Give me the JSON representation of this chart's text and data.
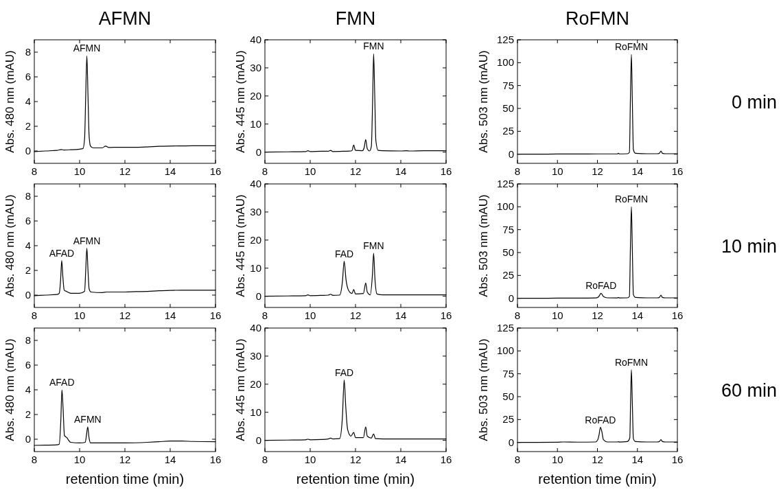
{
  "chart_data": [
    {
      "type": "line",
      "title": "AFMN",
      "ylabel": "Abs. 480 nm (mAU)",
      "xlim": [
        8,
        16
      ],
      "xticks": [
        8,
        10,
        12,
        14,
        16
      ],
      "ylim": [
        -1,
        9
      ],
      "yticks": [
        0,
        2,
        4,
        6,
        8
      ],
      "series": [
        {
          "color": "#000000",
          "x": [
            8,
            8.5,
            9,
            9.2,
            9.3,
            9.6,
            10,
            10.15,
            10.22,
            10.27,
            10.32,
            10.37,
            10.42,
            10.48,
            10.6,
            11,
            11.15,
            11.3,
            11.5,
            12,
            12.5,
            13,
            13.5,
            14,
            14.5,
            15,
            15.5,
            16
          ],
          "values": [
            -0.05,
            0,
            0.05,
            0.12,
            0.08,
            0.1,
            0.15,
            0.2,
            1.0,
            4.5,
            7.7,
            4.5,
            1.2,
            0.4,
            0.25,
            0.25,
            0.4,
            0.28,
            0.3,
            0.3,
            0.3,
            0.33,
            0.38,
            0.4,
            0.41,
            0.42,
            0.42,
            0.42
          ]
        }
      ],
      "annotations": [
        {
          "text": "AFMN",
          "x": 10.32,
          "y": 7.7
        }
      ]
    },
    {
      "type": "line",
      "title": "FMN",
      "ylabel": "Abs. 445 nm (mAU)",
      "xlim": [
        8,
        16
      ],
      "xticks": [
        8,
        10,
        12,
        14,
        16
      ],
      "ylim": [
        -4,
        40
      ],
      "yticks": [
        0,
        10,
        20,
        30,
        40
      ],
      "series": [
        {
          "color": "#000000",
          "x": [
            8,
            9,
            9.8,
            9.9,
            10,
            10.5,
            10.8,
            10.9,
            11,
            11.5,
            11.8,
            11.85,
            11.92,
            12,
            12.3,
            12.38,
            12.45,
            12.52,
            12.62,
            12.7,
            12.76,
            12.8,
            12.85,
            12.9,
            13,
            13.2,
            14,
            14.25,
            14.4,
            15,
            16
          ],
          "values": [
            0,
            0.1,
            0.2,
            0.5,
            0.2,
            0.3,
            0.3,
            0.6,
            0.2,
            0.3,
            0.4,
            0.6,
            2.5,
            0.6,
            0.5,
            1.5,
            4.5,
            1.2,
            0.4,
            2,
            20,
            35,
            20,
            4,
            0.6,
            0.5,
            0.4,
            0.5,
            0.4,
            0.5,
            0.5
          ]
        }
      ],
      "annotations": [
        {
          "text": "FMN",
          "x": 12.8,
          "y": 35
        }
      ]
    },
    {
      "type": "line",
      "title": "RoFMN",
      "ylabel": "Abs. 503 nm (mAU)",
      "xlim": [
        8,
        16
      ],
      "xticks": [
        8,
        10,
        12,
        14,
        16
      ],
      "ylim": [
        -10,
        125
      ],
      "yticks": [
        0,
        25,
        50,
        75,
        100,
        125
      ],
      "series": [
        {
          "color": "#000000",
          "x": [
            8,
            9,
            10,
            11,
            12,
            12.5,
            13,
            13.05,
            13.1,
            13.5,
            13.6,
            13.65,
            13.7,
            13.75,
            13.8,
            13.9,
            14.5,
            15,
            15.1,
            15.18,
            15.25,
            15.4,
            16
          ],
          "values": [
            0,
            0,
            0.2,
            0.2,
            0.3,
            0.3,
            0.3,
            1,
            0.3,
            0.5,
            2,
            60,
            109,
            55,
            5,
            1,
            0.5,
            0.5,
            1,
            3.5,
            1,
            0.5,
            0.5
          ]
        }
      ],
      "annotations": [
        {
          "text": "RoFMN",
          "x": 13.7,
          "y": 109
        },
        "0 min"
      ]
    },
    {
      "type": "line",
      "ylabel": "Abs. 480 nm (mAU)",
      "xlim": [
        8,
        16
      ],
      "xticks": [
        8,
        10,
        12,
        14,
        16
      ],
      "ylim": [
        -1,
        9
      ],
      "yticks": [
        0,
        2,
        4,
        6,
        8
      ],
      "series": [
        {
          "color": "#000000",
          "x": [
            8,
            8.5,
            9,
            9.1,
            9.16,
            9.21,
            9.26,
            9.32,
            9.42,
            9.47,
            9.6,
            10,
            10.22,
            10.27,
            10.32,
            10.37,
            10.42,
            10.5,
            11,
            11.2,
            12,
            12.5,
            13,
            13.5,
            14,
            14.5,
            15,
            16
          ],
          "values": [
            -0.05,
            0,
            0.05,
            0.15,
            1.2,
            2.8,
            1.5,
            0.4,
            0.3,
            0.25,
            0.15,
            0.15,
            0.3,
            2.0,
            3.8,
            2.0,
            0.5,
            0.25,
            0.2,
            0.25,
            0.25,
            0.28,
            0.3,
            0.35,
            0.38,
            0.4,
            0.4,
            0.4
          ]
        }
      ],
      "annotations": [
        {
          "text": "AFAD",
          "x": 9.21,
          "y": 2.8
        },
        {
          "text": "AFMN",
          "x": 10.32,
          "y": 3.8
        }
      ]
    },
    {
      "type": "line",
      "ylabel": "Abs. 445 nm (mAU)",
      "xlim": [
        8,
        16
      ],
      "xticks": [
        8,
        10,
        12,
        14,
        16
      ],
      "ylim": [
        -4,
        40
      ],
      "yticks": [
        0,
        10,
        20,
        30,
        40
      ],
      "series": [
        {
          "color": "#000000",
          "x": [
            8,
            9,
            9.8,
            9.9,
            10,
            10.5,
            10.8,
            10.9,
            11,
            11.3,
            11.42,
            11.5,
            11.58,
            11.7,
            11.85,
            11.92,
            12,
            12.35,
            12.45,
            12.52,
            12.65,
            12.75,
            12.8,
            12.86,
            12.95,
            13.2,
            14,
            15,
            16
          ],
          "values": [
            0,
            0.1,
            0.2,
            0.5,
            0.2,
            0.3,
            0.4,
            0.7,
            0.3,
            0.4,
            5,
            12.5,
            6,
            2,
            1,
            2.4,
            0.8,
            1,
            4.7,
            1.5,
            0.5,
            8,
            15.3,
            6,
            0.8,
            0.5,
            0.5,
            0.5,
            0.5
          ]
        }
      ],
      "annotations": [
        {
          "text": "FAD",
          "x": 11.5,
          "y": 12.5
        },
        {
          "text": "FMN",
          "x": 12.8,
          "y": 15.3
        }
      ]
    },
    {
      "type": "line",
      "ylabel": "Abs. 503 nm (mAU)",
      "xlim": [
        8,
        16
      ],
      "xticks": [
        8,
        10,
        12,
        14,
        16
      ],
      "ylim": [
        -10,
        125
      ],
      "yticks": [
        0,
        25,
        50,
        75,
        100,
        125
      ],
      "series": [
        {
          "color": "#000000",
          "x": [
            8,
            9,
            10,
            11,
            11.9,
            12.05,
            12.1,
            12.18,
            12.3,
            12.5,
            13,
            13.05,
            13.1,
            13.5,
            13.6,
            13.65,
            13.7,
            13.75,
            13.8,
            13.9,
            14.5,
            15,
            15.1,
            15.18,
            15.25,
            15.4,
            16
          ],
          "values": [
            0,
            0,
            0.2,
            0.2,
            0.4,
            1.5,
            3,
            5.5,
            2,
            0.5,
            0.4,
            1,
            0.4,
            0.5,
            2,
            55,
            100,
            50,
            4,
            1,
            0.5,
            0.5,
            1,
            3.5,
            1,
            0.5,
            0.5
          ]
        }
      ],
      "annotations": [
        {
          "text": "RoFAD",
          "x": 12.18,
          "y": 5.5
        },
        {
          "text": "RoFMN",
          "x": 13.7,
          "y": 100
        },
        "10 min"
      ]
    },
    {
      "type": "line",
      "ylabel": "Abs. 480 nm (mAU)",
      "xlabel": "retention time (min)",
      "xlim": [
        8,
        16
      ],
      "xticks": [
        8,
        10,
        12,
        14,
        16
      ],
      "ylim": [
        -1,
        9
      ],
      "yticks": [
        0,
        2,
        4,
        6,
        8
      ],
      "series": [
        {
          "color": "#000000",
          "x": [
            8,
            8.5,
            9,
            9.1,
            9.17,
            9.22,
            9.27,
            9.33,
            9.45,
            9.52,
            9.6,
            10,
            10.25,
            10.3,
            10.36,
            10.41,
            10.48,
            11,
            12,
            13,
            13.5,
            14,
            14.5,
            15,
            16
          ],
          "values": [
            -0.5,
            -0.48,
            -0.45,
            -0.4,
            1.5,
            4.0,
            2.5,
            0.3,
            0.1,
            -0.1,
            -0.25,
            -0.3,
            -0.25,
            0.3,
            1.0,
            0.2,
            -0.3,
            -0.3,
            -0.3,
            -0.25,
            -0.2,
            -0.15,
            -0.15,
            -0.18,
            -0.2
          ]
        }
      ],
      "annotations": [
        {
          "text": "AFAD",
          "x": 9.22,
          "y": 4.0
        },
        {
          "text": "AFMN",
          "x": 10.36,
          "y": 1.0
        }
      ]
    },
    {
      "type": "line",
      "ylabel": "Abs. 445 nm (mAU)",
      "xlabel": "retention time (min)",
      "xlim": [
        8,
        16
      ],
      "xticks": [
        8,
        10,
        12,
        14,
        16
      ],
      "ylim": [
        -4,
        40
      ],
      "yticks": [
        0,
        10,
        20,
        30,
        40
      ],
      "series": [
        {
          "color": "#000000",
          "x": [
            8,
            9,
            9.8,
            9.9,
            10,
            10.5,
            10.8,
            10.9,
            11,
            11.3,
            11.42,
            11.5,
            11.57,
            11.65,
            11.8,
            11.92,
            12,
            12.35,
            12.45,
            12.52,
            12.7,
            12.8,
            12.88,
            13.2,
            14,
            15,
            16
          ],
          "values": [
            0,
            0.1,
            0.2,
            0.4,
            0.2,
            0.3,
            0.5,
            0.8,
            0.5,
            0.6,
            8,
            21.5,
            12,
            4,
            1.5,
            2.8,
            1,
            1,
            4.8,
            1.5,
            0.8,
            2.3,
            0.6,
            0.5,
            0.5,
            0.5,
            0.5
          ]
        }
      ],
      "annotations": [
        {
          "text": "FAD",
          "x": 11.5,
          "y": 21.5
        }
      ]
    },
    {
      "type": "line",
      "ylabel": "Abs. 503 nm (mAU)",
      "xlabel": "retention time (min)",
      "xlim": [
        8,
        16
      ],
      "xticks": [
        8,
        10,
        12,
        14,
        16
      ],
      "ylim": [
        -10,
        125
      ],
      "yticks": [
        0,
        25,
        50,
        75,
        100,
        125
      ],
      "series": [
        {
          "color": "#000000",
          "x": [
            8,
            9,
            10,
            10.3,
            11,
            11.9,
            12.02,
            12.08,
            12.15,
            12.22,
            12.3,
            12.5,
            13,
            13.05,
            13.1,
            13.5,
            13.62,
            13.66,
            13.7,
            13.75,
            13.8,
            13.9,
            14.5,
            15,
            15.1,
            15.18,
            15.25,
            15.4,
            16
          ],
          "values": [
            0,
            0,
            0.2,
            0.5,
            0.3,
            0.5,
            3,
            8,
            16.5,
            12,
            3,
            0.5,
            0.5,
            0.8,
            0.4,
            1,
            5,
            45,
            79.5,
            40,
            4,
            1,
            0.5,
            0.5,
            1,
            3,
            1,
            0.5,
            0.5
          ]
        }
      ],
      "annotations": [
        {
          "text": "RoFAD",
          "x": 12.15,
          "y": 16.5
        },
        {
          "text": "RoFMN",
          "x": 13.7,
          "y": 79.5
        },
        "60 min"
      ]
    }
  ]
}
